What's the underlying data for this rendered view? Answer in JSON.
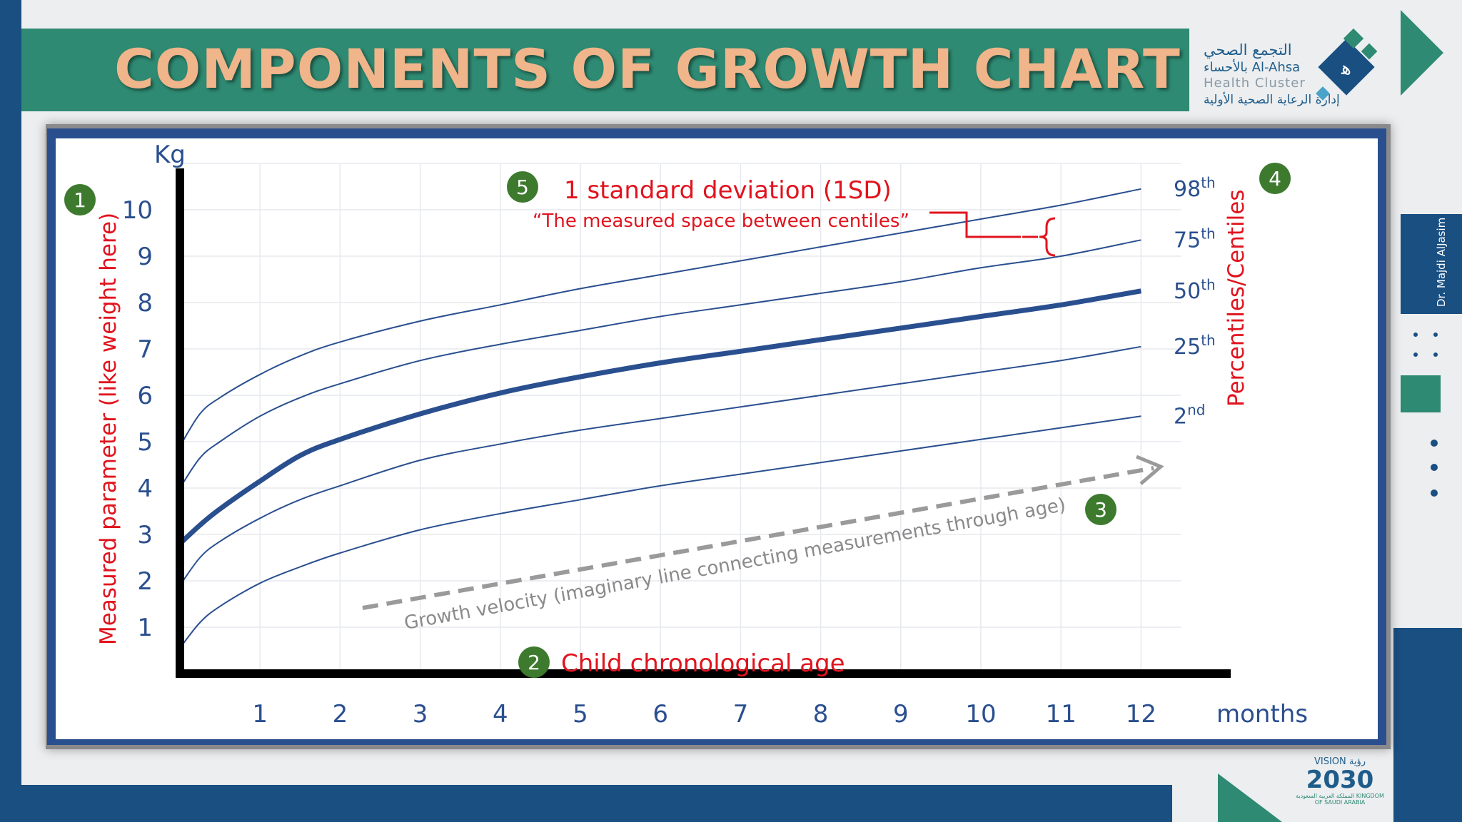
{
  "slide": {
    "title": "COMPONENTS OF GROWTH CHART",
    "logo": {
      "arabic_line1": "التجمع الصحي",
      "arabic_line2": "بالأحساء Al-Ahsa",
      "english_line": "Health Cluster",
      "arabic_line3": "إدارة الرعاية الصحية الأولية"
    },
    "side_credit": "Dr. Majdi AlJasim",
    "vision": {
      "top": "VISION رؤية",
      "number": "2030",
      "sub": "المملكة العربية السعودية KINGDOM OF SAUDI ARABIA"
    },
    "colors": {
      "title_band": "#2e8a72",
      "title_text": "#f0b58a",
      "navy": "#1a4f82",
      "annotation_red": "#e0141e",
      "badge_green": "#3d7a2e",
      "curve_blue": "#2a4f8f"
    }
  },
  "chart_data": {
    "type": "line",
    "x_unit_label": "months",
    "y_unit_label": "Kg",
    "x_ticks": [
      "1",
      "2",
      "3",
      "4",
      "5",
      "6",
      "7",
      "8",
      "9",
      "10",
      "11",
      "12"
    ],
    "y_ticks": [
      "1",
      "2",
      "3",
      "4",
      "5",
      "6",
      "7",
      "8",
      "9",
      "10"
    ],
    "xlim": [
      0,
      12.5
    ],
    "ylim": [
      0,
      11
    ],
    "grid": true,
    "x": [
      0,
      0.25,
      0.5,
      1,
      1.5,
      2,
      3,
      4,
      5,
      6,
      7,
      8,
      9,
      10,
      11,
      12
    ],
    "series": [
      {
        "name": "98th",
        "sup": "th",
        "base": "98",
        "emphasis": false,
        "values": [
          4.9,
          5.6,
          5.95,
          6.45,
          6.85,
          7.15,
          7.6,
          7.95,
          8.3,
          8.6,
          8.9,
          9.2,
          9.5,
          9.8,
          10.1,
          10.45
        ]
      },
      {
        "name": "75th",
        "sup": "th",
        "base": "75",
        "emphasis": false,
        "values": [
          4.0,
          4.65,
          5.0,
          5.55,
          5.95,
          6.25,
          6.75,
          7.1,
          7.4,
          7.7,
          7.95,
          8.2,
          8.45,
          8.75,
          9.0,
          9.35
        ]
      },
      {
        "name": "50th",
        "sup": "th",
        "base": "50",
        "emphasis": true,
        "values": [
          2.8,
          3.2,
          3.55,
          4.15,
          4.7,
          5.05,
          5.6,
          6.05,
          6.4,
          6.7,
          6.95,
          7.2,
          7.45,
          7.7,
          7.95,
          8.25
        ]
      },
      {
        "name": "25th",
        "sup": "th",
        "base": "25",
        "emphasis": false,
        "values": [
          1.9,
          2.5,
          2.85,
          3.35,
          3.75,
          4.05,
          4.6,
          4.95,
          5.25,
          5.5,
          5.75,
          6.0,
          6.25,
          6.5,
          6.75,
          7.05
        ]
      },
      {
        "name": "2nd",
        "sup": "nd",
        "base": "2",
        "emphasis": false,
        "values": [
          0.55,
          1.1,
          1.45,
          1.95,
          2.3,
          2.6,
          3.1,
          3.45,
          3.75,
          4.05,
          4.3,
          4.55,
          4.8,
          5.05,
          5.3,
          5.55
        ]
      }
    ],
    "annotations": {
      "y_axis_label": "Measured parameter (like weight here)",
      "x_axis_label": "Child chronological age",
      "velocity_label": "Growth velocity (imaginary line connecting measurements through age)",
      "sd_title": "1 standard deviation (1SD)",
      "sd_subtitle": "“The measured space between centiles”",
      "centiles_label": "Percentiles/Centiles",
      "badges": [
        "1",
        "2",
        "3",
        "4",
        "5"
      ]
    }
  }
}
